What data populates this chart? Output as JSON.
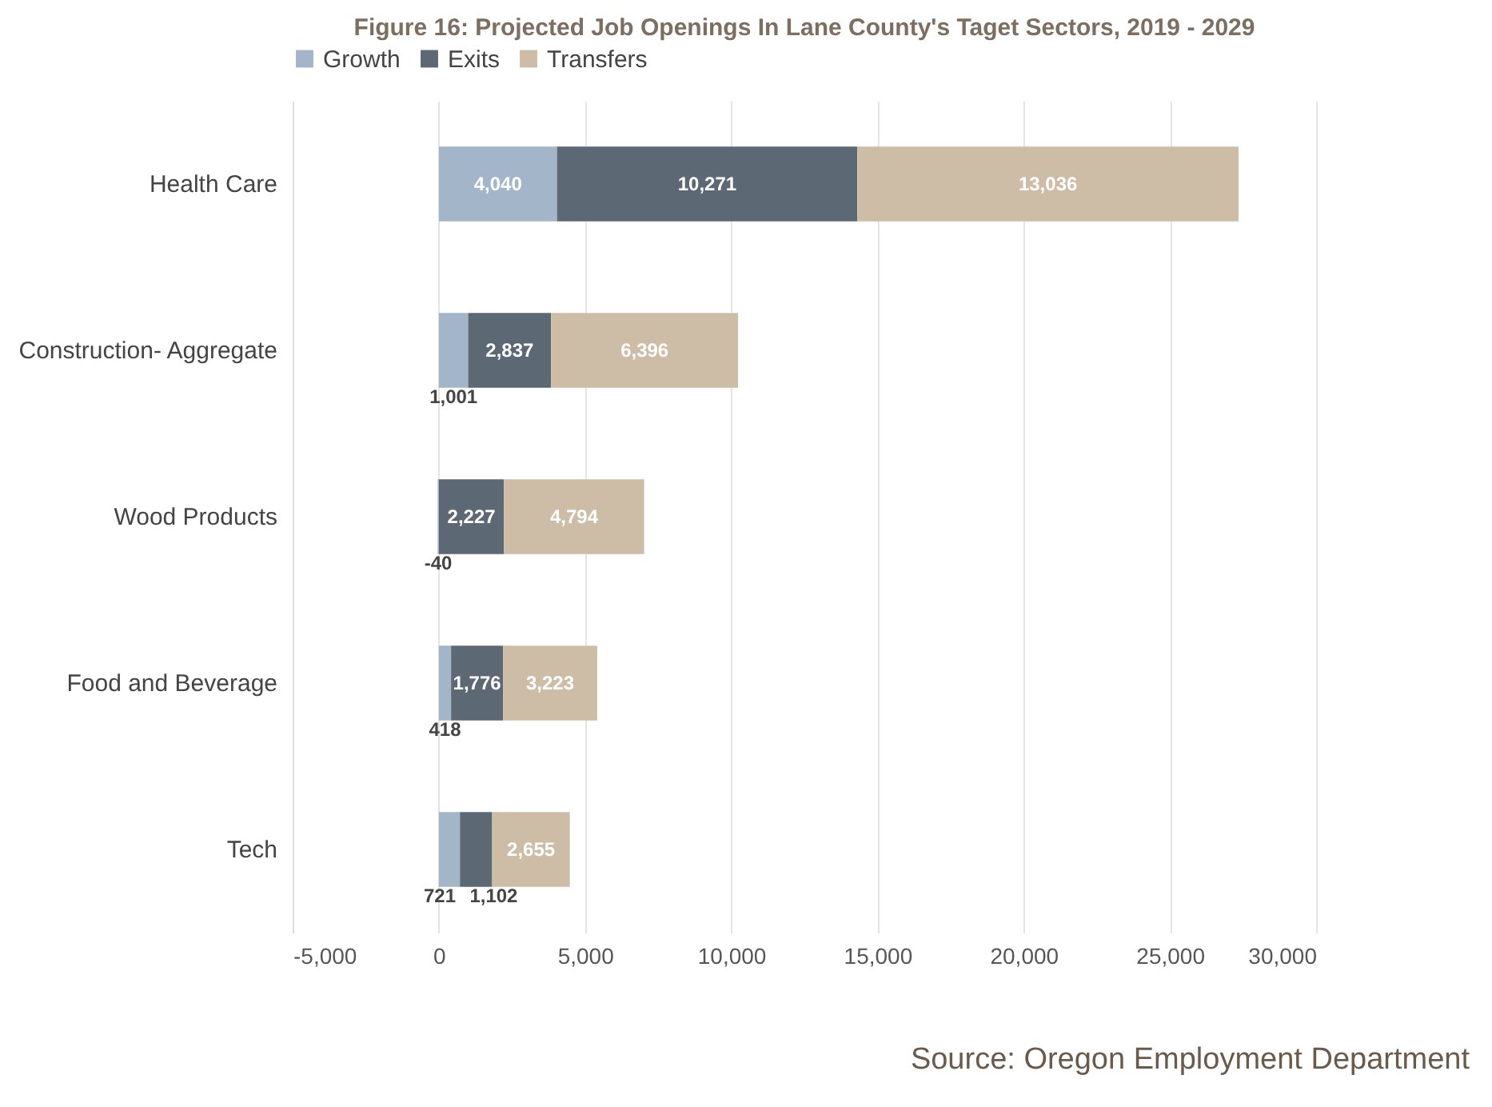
{
  "chart_data": {
    "type": "bar",
    "orientation": "horizontal",
    "stacked": true,
    "title": "Figure 16: Projected Job Openings In Lane County's Taget Sectors, 2019 - 2029",
    "categories": [
      "Health Care",
      "Construction- Aggregate",
      "Wood Products",
      "Food and Beverage",
      "Tech"
    ],
    "series": [
      {
        "name": "Growth",
        "color": "#a2b5c9",
        "values": [
          4040,
          1001,
          -40,
          418,
          721
        ],
        "value_labels": [
          "4,040",
          "1,001",
          "-40",
          "418",
          "721"
        ]
      },
      {
        "name": "Exits",
        "color": "#5c6873",
        "values": [
          10271,
          2837,
          2227,
          1776,
          1102
        ],
        "value_labels": [
          "10,271",
          "2,837",
          "2,227",
          "1,776",
          "1,102"
        ]
      },
      {
        "name": "Transfers",
        "color": "#cdbda6",
        "values": [
          13036,
          6396,
          4794,
          3223,
          2655
        ],
        "value_labels": [
          "13,036",
          "6,396",
          "4,794",
          "3,223",
          "2,655"
        ]
      }
    ],
    "xlim": [
      -5000,
      30000
    ],
    "xticks": [
      {
        "value": -5000,
        "label": "-5,000"
      },
      0,
      {
        "value": 5000,
        "label": "5,000"
      },
      {
        "value": 10000,
        "label": "10,000"
      },
      {
        "value": 15000,
        "label": "15,000"
      },
      {
        "value": 20000,
        "label": "20,000"
      },
      {
        "value": 25000,
        "label": "25,000"
      },
      {
        "value": 30000,
        "label": "30,000"
      }
    ],
    "grid": "x",
    "legend": "top",
    "annotations": [
      "Source: Oregon Employment Department"
    ]
  }
}
